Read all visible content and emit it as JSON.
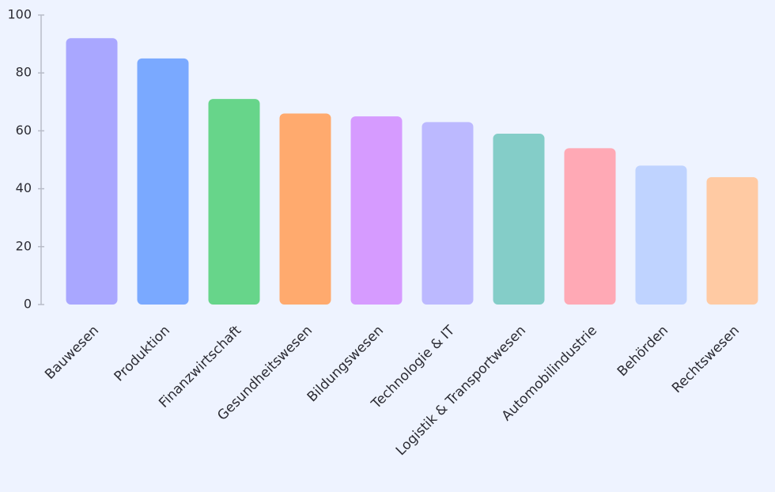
{
  "chart_data": {
    "type": "bar",
    "categories": [
      "Bauwesen",
      "Produktion",
      "Finanzwirtschaft",
      "Gesundheitswesen",
      "Bildungswesen",
      "Technologie & IT",
      "Logistik & Transportwesen",
      "Automobilindustrie",
      "Behörden",
      "Rechtswesen"
    ],
    "values": [
      92,
      85,
      71,
      66,
      65,
      63,
      59,
      54,
      48,
      44
    ],
    "colors": [
      "#a9a7ff",
      "#7aa9ff",
      "#67d58a",
      "#ffaa6e",
      "#d69bff",
      "#bcb9ff",
      "#84cdc8",
      "#ffa9b5",
      "#bfd3ff",
      "#ffcaa3"
    ],
    "ylim": [
      0,
      100
    ],
    "yticks": [
      0,
      20,
      40,
      60,
      80,
      100
    ]
  }
}
